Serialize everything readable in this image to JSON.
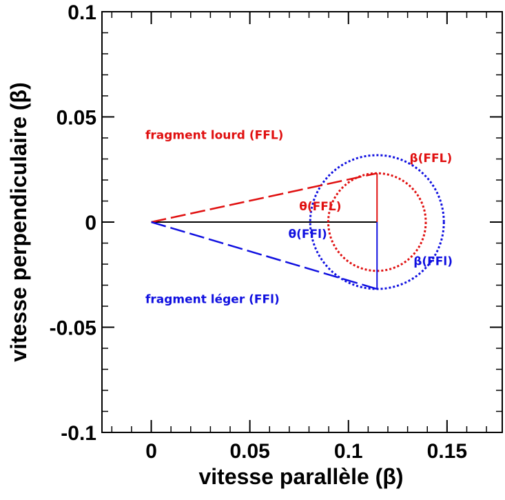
{
  "chart_data": {
    "type": "scatter",
    "xlabel": "vitesse parallèle (β)",
    "ylabel": "vitesse perpendiculaire (β)",
    "xlim": [
      -0.025,
      0.178
    ],
    "ylim": [
      -0.1,
      0.1
    ],
    "x_ticks": [
      0,
      0.05,
      0.1,
      0.15
    ],
    "x_tick_labels": [
      "0",
      "0.05",
      "0.1",
      "0.15"
    ],
    "y_ticks": [
      -0.1,
      -0.05,
      0,
      0.05,
      0.1
    ],
    "y_tick_labels": [
      "-0.1",
      "-0.05",
      "0",
      "0.05",
      "0.1"
    ],
    "x_minor_step": 0.01,
    "y_minor_step": 0.01,
    "grid": false,
    "colors": {
      "heavy": "#e01010",
      "light": "#1010e0",
      "axis": "#000000"
    },
    "elements": {
      "center": [
        0.1145,
        0
      ],
      "heavy_tip": [
        0.1145,
        0.0232
      ],
      "light_tip": [
        0.1145,
        -0.0318
      ],
      "heavy_circle_radius": 0.0232,
      "light_circle_radius": 0.0318
    },
    "annotations": [
      {
        "id": "heavy-fragment",
        "text": "fragment lourd (FFL)",
        "color": "#e01010",
        "x": -0.003,
        "y": 0.0395,
        "anchor": "start"
      },
      {
        "id": "theta-heavy",
        "text": "θ(FFL)",
        "color": "#e01010",
        "x": 0.075,
        "y": 0.0055,
        "anchor": "start"
      },
      {
        "id": "beta-heavy",
        "text": "β(FFL)",
        "color": "#e01010",
        "x": 0.131,
        "y": 0.0285,
        "anchor": "start"
      },
      {
        "id": "theta-light",
        "text": "θ(FFl)",
        "color": "#1010e0",
        "x": 0.0695,
        "y": -0.0075,
        "anchor": "start"
      },
      {
        "id": "beta-light",
        "text": "β(FFl)",
        "color": "#1010e0",
        "x": 0.133,
        "y": -0.0205,
        "anchor": "start"
      },
      {
        "id": "light-fragment",
        "text": "fragment léger (FFl)",
        "color": "#1010e0",
        "x": -0.003,
        "y": -0.0385,
        "anchor": "start"
      }
    ]
  }
}
